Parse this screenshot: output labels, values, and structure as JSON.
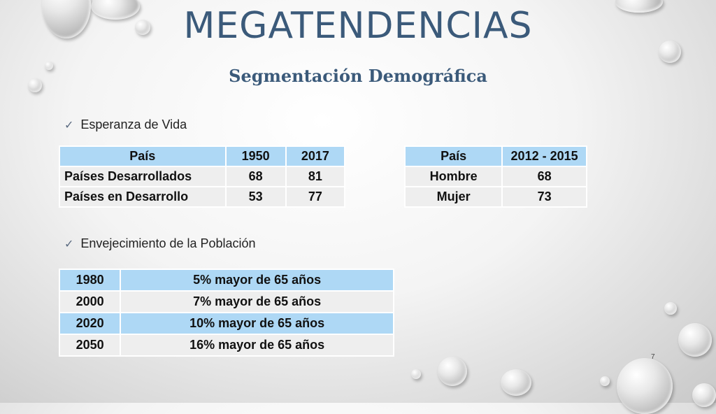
{
  "title": "MEGATENDENCIAS",
  "subtitle": "Segmentación Demográfica",
  "bullets": {
    "life": "Esperanza de Vida",
    "aging": "Envejecimiento de la Población"
  },
  "table1": {
    "headers": [
      "País",
      "1950",
      "2017"
    ],
    "rows": [
      [
        "Países Desarrollados",
        "68",
        "81"
      ],
      [
        "Países en Desarrollo",
        "53",
        "77"
      ]
    ]
  },
  "table2": {
    "headers": [
      "País",
      "2012 - 2015"
    ],
    "rows": [
      [
        "Hombre",
        "68"
      ],
      [
        "Mujer",
        "73"
      ]
    ]
  },
  "table3": {
    "rows": [
      [
        "1980",
        "5% mayor de 65 años"
      ],
      [
        "2000",
        "7% mayor de 65 años"
      ],
      [
        "2020",
        "10% mayor de 65 años"
      ],
      [
        "2050",
        "16% mayor de 65 años"
      ]
    ]
  },
  "page_number": "7",
  "colors": {
    "title": "#3b5a7a",
    "table_blue": "#aed8f5",
    "table_grey": "#eeeeee"
  }
}
